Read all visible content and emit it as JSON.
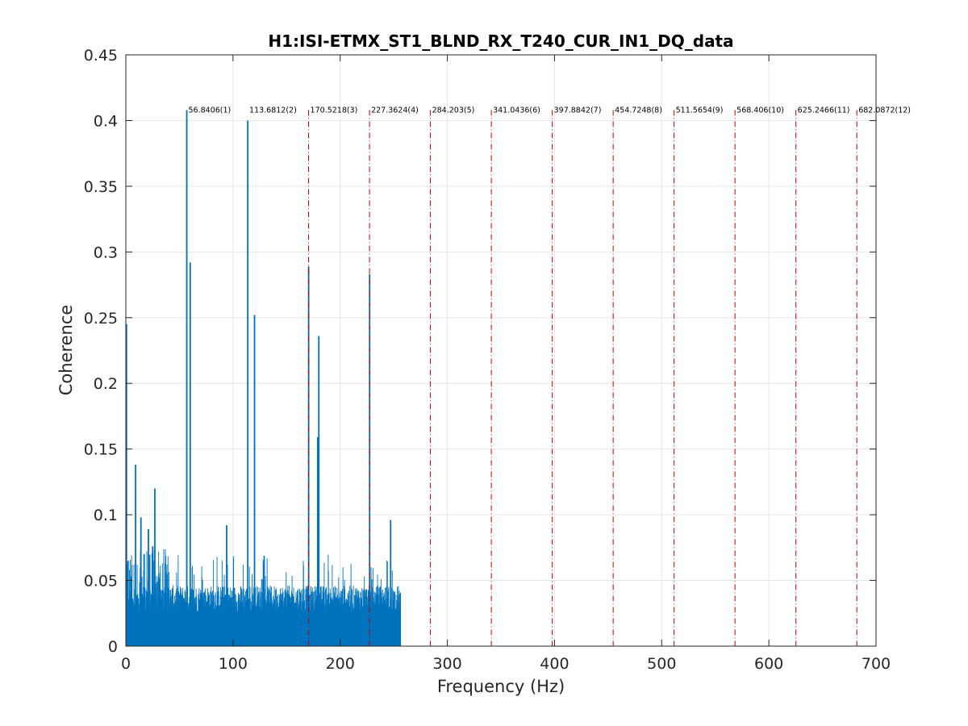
{
  "chart_data": {
    "type": "bar",
    "title": "H1:ISI-ETMX_ST1_BLND_RX_T240_CUR_IN1_DQ_data",
    "xlabel": "Frequency (Hz)",
    "ylabel": "Coherence",
    "xlim": [
      0,
      700
    ],
    "ylim": [
      0,
      0.45
    ],
    "grid": true,
    "x_ticks": [
      0,
      100,
      200,
      300,
      400,
      500,
      600,
      700
    ],
    "y_ticks": [
      0,
      0.05,
      0.1,
      0.15,
      0.2,
      0.25,
      0.3,
      0.35,
      0.4,
      0.45
    ],
    "x_tick_labels": [
      "0",
      "100",
      "200",
      "300",
      "400",
      "500",
      "600",
      "700"
    ],
    "y_tick_labels": [
      "0",
      "0.05",
      "0.1",
      "0.15",
      "0.2",
      "0.25",
      "0.3",
      "0.35",
      "0.4",
      "0.45"
    ],
    "bar_color": "#0072BD",
    "harmonic_line_color": "#C00000",
    "harmonic_label_y": 0.408,
    "data_range_hz": [
      0,
      256
    ],
    "baseline_level": 0.042,
    "peaks": [
      {
        "x": 0.5,
        "y": 0.245
      },
      {
        "x": 2,
        "y": 0.065
      },
      {
        "x": 9,
        "y": 0.138
      },
      {
        "x": 14,
        "y": 0.098
      },
      {
        "x": 17,
        "y": 0.07
      },
      {
        "x": 21,
        "y": 0.089
      },
      {
        "x": 25,
        "y": 0.076
      },
      {
        "x": 27,
        "y": 0.12
      },
      {
        "x": 56.8,
        "y": 0.408
      },
      {
        "x": 60,
        "y": 0.292
      },
      {
        "x": 94,
        "y": 0.092
      },
      {
        "x": 113.7,
        "y": 0.4
      },
      {
        "x": 120,
        "y": 0.252
      },
      {
        "x": 170.5,
        "y": 0.289
      },
      {
        "x": 180,
        "y": 0.236
      },
      {
        "x": 179,
        "y": 0.159
      },
      {
        "x": 227.4,
        "y": 0.283
      },
      {
        "x": 247,
        "y": 0.096
      }
    ],
    "harmonics": [
      {
        "x": 56.8406,
        "label": "56.8406(1)",
        "line": false
      },
      {
        "x": 113.6812,
        "label": "113.6812(2)",
        "line": false
      },
      {
        "x": 170.5218,
        "label": "170.5218(3)",
        "line": true
      },
      {
        "x": 227.3624,
        "label": "227.3624(4)",
        "line": true
      },
      {
        "x": 284.203,
        "label": "284.203(5)",
        "line": true
      },
      {
        "x": 341.0436,
        "label": "341.0436(6)",
        "line": true
      },
      {
        "x": 397.8842,
        "label": "397.8842(7)",
        "line": true
      },
      {
        "x": 454.7248,
        "label": "454.7248(8)",
        "line": true
      },
      {
        "x": 511.5654,
        "label": "511.5654(9)",
        "line": true
      },
      {
        "x": 568.406,
        "label": "568.406(10)",
        "line": true
      },
      {
        "x": 625.2466,
        "label": "625.2466(11)",
        "line": true
      },
      {
        "x": 682.0872,
        "label": "682.0872(12)",
        "line": true
      }
    ]
  }
}
